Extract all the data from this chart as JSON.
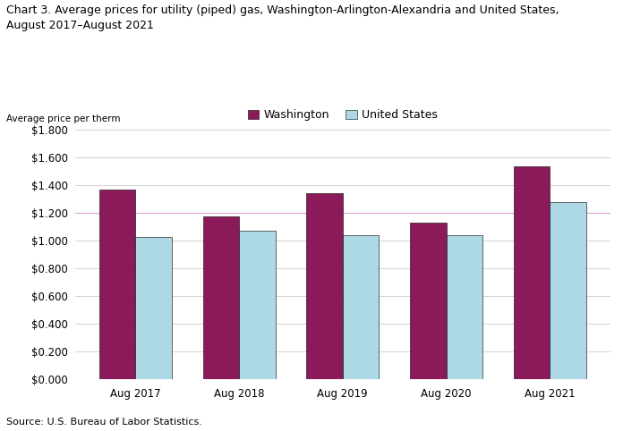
{
  "title": "Chart 3. Average prices for utility (piped) gas, Washington-Arlington-Alexandria and United States,\nAugust 2017–August 2021",
  "ylabel": "Average price per therm",
  "source": "Source: U.S. Bureau of Labor Statistics.",
  "categories": [
    "Aug 2017",
    "Aug 2018",
    "Aug 2019",
    "Aug 2020",
    "Aug 2021"
  ],
  "washington": [
    1.363,
    1.172,
    1.341,
    1.127,
    1.536
  ],
  "us": [
    1.028,
    1.072,
    1.04,
    1.04,
    1.277
  ],
  "washington_color": "#8B1A5A",
  "us_color": "#ADD8E6",
  "washington_label": "Washington",
  "us_label": "United States",
  "ylim": [
    0.0,
    1.8
  ],
  "yticks": [
    0.0,
    0.2,
    0.4,
    0.6,
    0.8,
    1.0,
    1.2,
    1.4,
    1.6,
    1.8
  ],
  "grid_color": "#D3D3D3",
  "ref_line_color": "#DDA0DD",
  "ref_line_value": 1.2,
  "bar_width": 0.35,
  "figsize": [
    6.96,
    4.82
  ],
  "dpi": 100,
  "title_fontsize": 9,
  "tick_fontsize": 8.5,
  "legend_fontsize": 9,
  "source_fontsize": 8,
  "ylabel_fontsize": 7.5
}
